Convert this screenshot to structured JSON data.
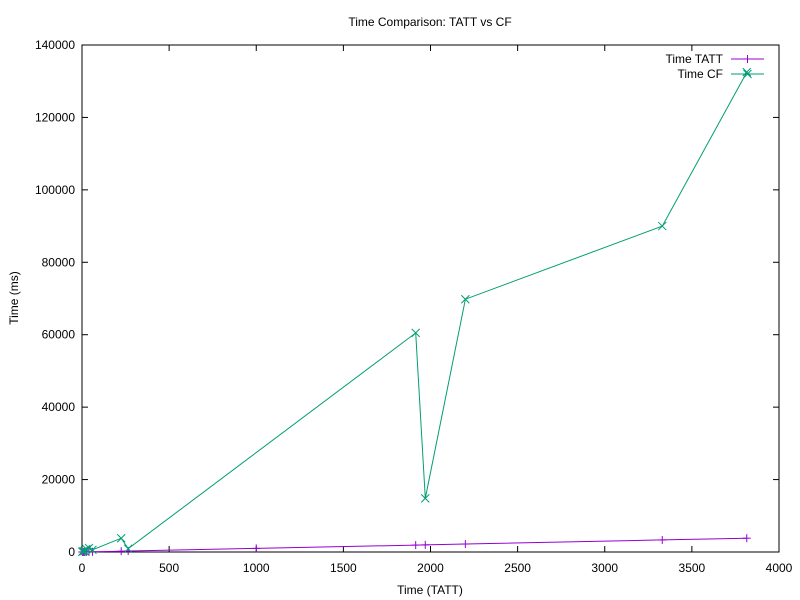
{
  "chart_data": {
    "type": "line",
    "title": "Time Comparison: TATT vs CF",
    "xlabel": "Time (TATT)",
    "ylabel": "Time (ms)",
    "xlim": [
      0,
      4000
    ],
    "ylim": [
      0,
      140000
    ],
    "xticks": [
      "0",
      "500",
      "1000",
      "1500",
      "2000",
      "2500",
      "3000",
      "3500",
      "4000"
    ],
    "yticks": [
      "0",
      "20000",
      "40000",
      "60000",
      "80000",
      "100000",
      "120000",
      "140000"
    ],
    "grid": false,
    "legend_position": "top-right",
    "series": [
      {
        "name": "Time TATT",
        "color": "#9400d3",
        "marker": "plus",
        "points": [
          [
            2,
            2
          ],
          [
            8,
            8
          ],
          [
            15,
            15
          ],
          [
            25,
            25
          ],
          [
            40,
            40
          ],
          [
            60,
            60
          ],
          [
            225,
            225
          ],
          [
            265,
            265
          ],
          [
            1000,
            1000
          ],
          [
            1915,
            1915
          ],
          [
            1970,
            1970
          ],
          [
            2200,
            2200
          ],
          [
            3330,
            3330
          ],
          [
            3815,
            3815
          ]
        ]
      },
      {
        "name": "Time CF",
        "color": "#009e73",
        "marker": "cross",
        "points": [
          [
            2,
            100
          ],
          [
            8,
            200
          ],
          [
            15,
            300
          ],
          [
            25,
            800
          ],
          [
            40,
            1100
          ],
          [
            60,
            600
          ],
          [
            225,
            3800
          ],
          [
            265,
            900
          ],
          [
            1915,
            60500
          ],
          [
            1970,
            14800
          ],
          [
            2200,
            69800
          ],
          [
            3330,
            90000
          ],
          [
            3815,
            132500
          ]
        ]
      }
    ]
  }
}
